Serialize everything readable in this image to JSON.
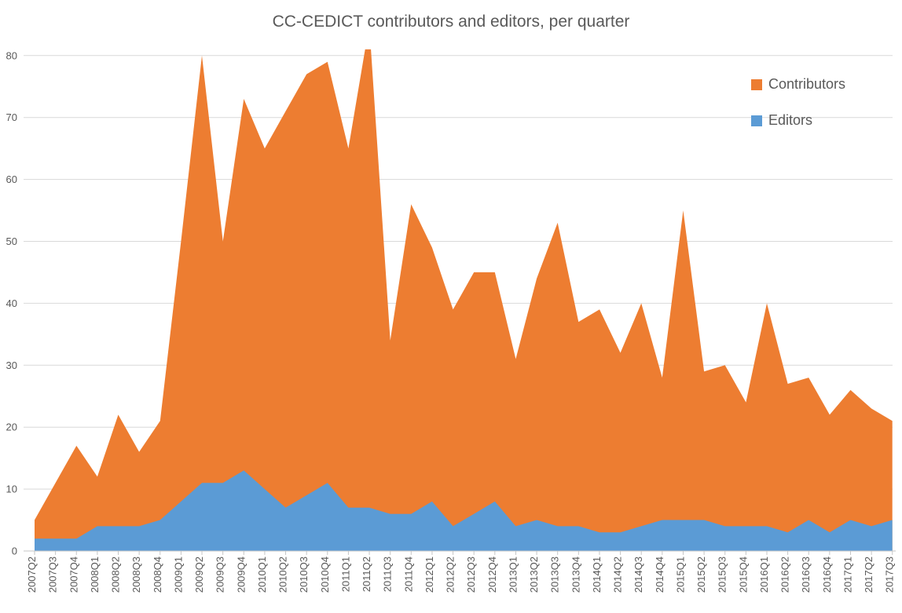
{
  "title": "CC-CEDICT contributors and editors, per quarter",
  "colors": {
    "contributors": "#ED7D31",
    "editors": "#5B9BD5",
    "grid": "#D9D9D9",
    "axis": "#C6C6C6",
    "text": "#595959",
    "background": "#FFFFFF"
  },
  "legend": [
    {
      "label": "Contributors",
      "color": "#ED7D31"
    },
    {
      "label": "Editors",
      "color": "#5B9BD5"
    }
  ],
  "chart_data": {
    "type": "area",
    "stacked": false,
    "title": "CC-CEDICT contributors and editors, per quarter",
    "xlabel": "",
    "ylabel": "",
    "grid": "horizontal",
    "legend_position": "top-right",
    "ylim": [
      0,
      81
    ],
    "y_ticks": [
      0,
      10,
      20,
      30,
      40,
      50,
      60,
      70,
      80
    ],
    "categories": [
      "2007Q2",
      "2007Q3",
      "2007Q4",
      "2008Q1",
      "2008Q2",
      "2008Q3",
      "2008Q4",
      "2009Q1",
      "2009Q2",
      "2009Q3",
      "2009Q4",
      "2010Q1",
      "2010Q2",
      "2010Q3",
      "2010Q4",
      "2011Q1",
      "2011Q2",
      "2011Q3",
      "2011Q4",
      "2012Q1",
      "2012Q2",
      "2012Q3",
      "2012Q4",
      "2013Q1",
      "2013Q2",
      "2013Q3",
      "2013Q4",
      "2014Q1",
      "2014Q2",
      "2014Q3",
      "2014Q4",
      "2015Q1",
      "2015Q2",
      "2015Q3",
      "2015Q4",
      "2016Q1",
      "2016Q2",
      "2016Q3",
      "2016Q4",
      "2017Q1",
      "2017Q2",
      "2017Q3"
    ],
    "series": [
      {
        "name": "Contributors",
        "color": "#ED7D31",
        "values": [
          5,
          11,
          17,
          12,
          22,
          16,
          21,
          50,
          80,
          50,
          73,
          65,
          71,
          77,
          79,
          65,
          85,
          34,
          56,
          49,
          39,
          45,
          45,
          31,
          44,
          53,
          37,
          39,
          32,
          40,
          28,
          55,
          29,
          30,
          24,
          40,
          27,
          28,
          22,
          26,
          23,
          21
        ]
      },
      {
        "name": "Editors",
        "color": "#5B9BD5",
        "values": [
          2,
          2,
          2,
          4,
          4,
          4,
          5,
          8,
          11,
          11,
          13,
          10,
          7,
          9,
          11,
          7,
          7,
          6,
          6,
          8,
          4,
          6,
          8,
          4,
          5,
          4,
          4,
          3,
          3,
          4,
          5,
          5,
          5,
          4,
          4,
          4,
          3,
          5,
          3,
          5,
          4,
          5
        ]
      }
    ]
  }
}
